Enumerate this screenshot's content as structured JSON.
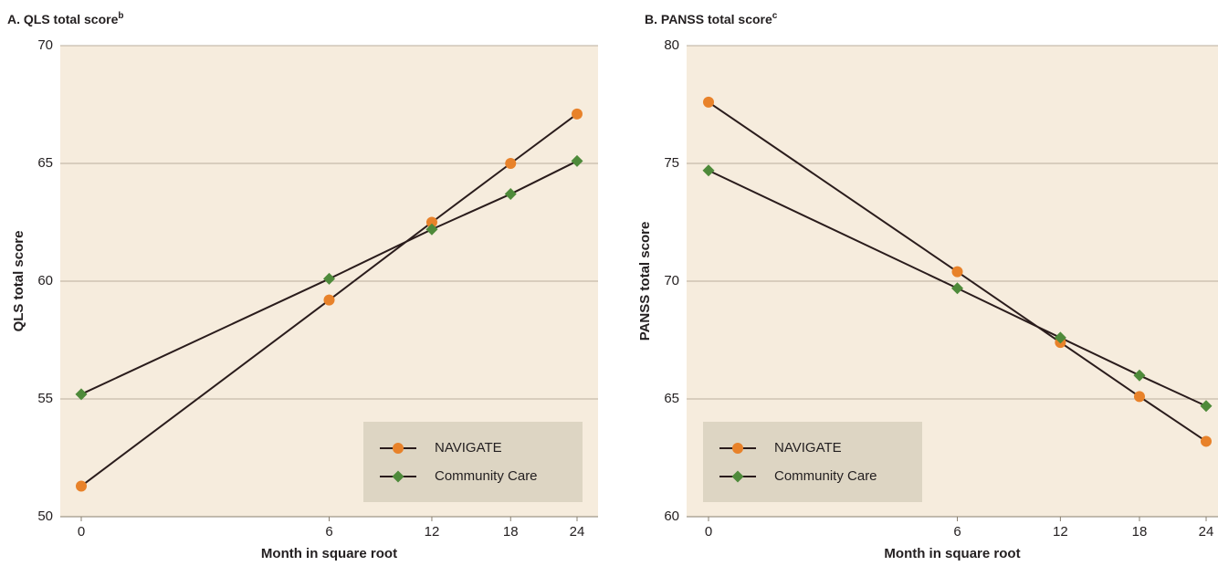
{
  "chart_data": [
    {
      "type": "line",
      "title": "A. QLS total score",
      "title_superscript": "b",
      "x_label": "Month in square root",
      "y_label": "QLS total score",
      "x": [
        0,
        6,
        12,
        18,
        24
      ],
      "x_scale": "sqrt",
      "xlim": [
        0,
        24
      ],
      "xticks": [
        0,
        6,
        12,
        18,
        24
      ],
      "ylim": [
        50,
        70
      ],
      "yticks": [
        50,
        55,
        60,
        65,
        70
      ],
      "grid": true,
      "legend": "lower right",
      "series": [
        {
          "name": "NAVIGATE",
          "color": "#e8822a",
          "marker": "circle",
          "values": [
            51.3,
            59.2,
            62.5,
            65.0,
            67.1
          ]
        },
        {
          "name": "Community Care",
          "color": "#4e8a3a",
          "marker": "diamond",
          "values": [
            55.2,
            60.1,
            62.2,
            63.7,
            65.1
          ]
        }
      ]
    },
    {
      "type": "line",
      "title": "B. PANSS total score",
      "title_superscript": "c",
      "x_label": "Month in square root",
      "y_label": "PANSS total score",
      "x": [
        0,
        6,
        12,
        18,
        24
      ],
      "x_scale": "sqrt",
      "xlim": [
        0,
        24
      ],
      "xticks": [
        0,
        6,
        12,
        18,
        24
      ],
      "ylim": [
        60,
        80
      ],
      "yticks": [
        60,
        65,
        70,
        75,
        80
      ],
      "grid": true,
      "legend": "lower left",
      "series": [
        {
          "name": "NAVIGATE",
          "color": "#e8822a",
          "marker": "circle",
          "values": [
            77.6,
            70.4,
            67.4,
            65.1,
            63.2
          ]
        },
        {
          "name": "Community Care",
          "color": "#4e8a3a",
          "marker": "diamond",
          "values": [
            74.7,
            69.7,
            67.6,
            66.0,
            64.7
          ]
        }
      ]
    }
  ]
}
